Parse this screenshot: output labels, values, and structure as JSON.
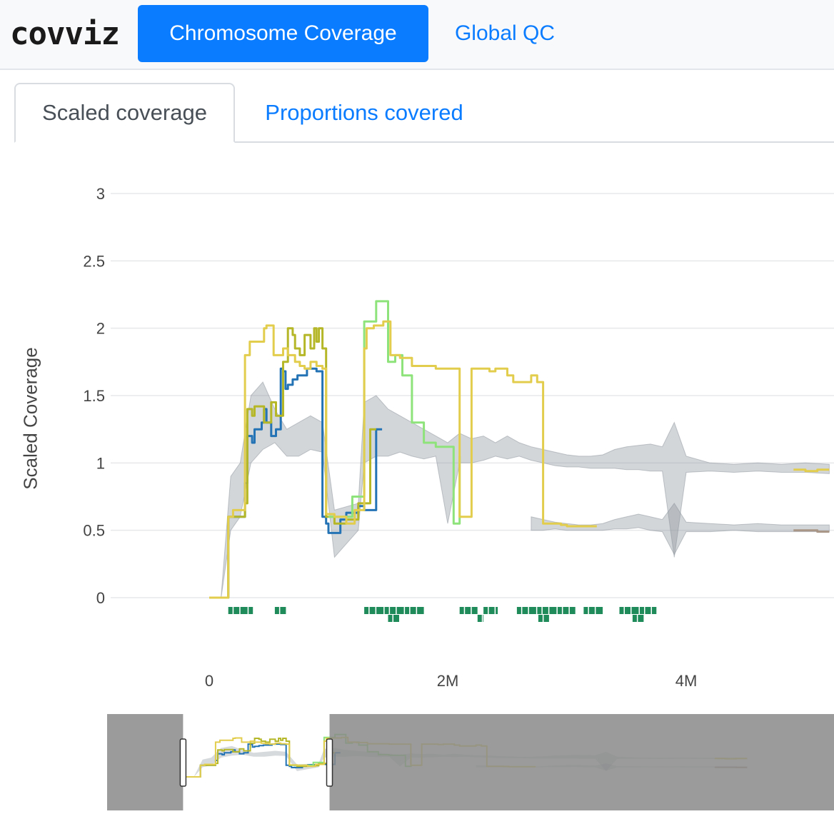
{
  "navbar": {
    "brand": "covviz",
    "items": [
      {
        "label": "Chromosome Coverage",
        "active": true
      },
      {
        "label": "Global QC",
        "active": false
      }
    ],
    "accent_color": "#0a7cff"
  },
  "tabs": [
    {
      "label": "Scaled coverage",
      "active": true
    },
    {
      "label": "Proportions covered",
      "active": false
    }
  ],
  "chart_data": {
    "type": "line",
    "title": "",
    "xlabel": "",
    "ylabel": "Scaled Coverage",
    "xlim": [
      0,
      5200000
    ],
    "ylim": [
      0,
      3
    ],
    "x_ticks": [
      {
        "value": 0,
        "label": "0"
      },
      {
        "value": 2000000,
        "label": "2M"
      },
      {
        "value": 4000000,
        "label": "4M"
      }
    ],
    "y_ticks": [
      {
        "value": 0,
        "label": "0"
      },
      {
        "value": 0.5,
        "label": "0.5"
      },
      {
        "value": 1,
        "label": "1"
      },
      {
        "value": 1.5,
        "label": "1.5"
      },
      {
        "value": 2,
        "label": "2"
      },
      {
        "value": 2.5,
        "label": "2.5"
      },
      {
        "value": 3,
        "label": "3"
      }
    ],
    "grid": true,
    "bands": [
      {
        "name": "",
        "color": "#8c949c",
        "x": [
          100000,
          180000,
          260000,
          350000,
          450000,
          550000,
          650000,
          750000,
          850000,
          950000,
          1050000,
          1250000,
          1300000,
          1400000,
          1500000,
          1600000,
          1700000,
          1800000,
          1900000,
          2000000,
          2100000,
          2200000,
          2300000,
          2400000,
          2500000,
          2600000,
          2700000,
          2800000,
          2900000,
          3000000,
          3100000,
          3200000,
          3300000,
          3400000,
          3500000,
          3600000,
          3700000,
          3800000,
          3900000,
          4000000,
          4200000,
          4400000,
          4600000,
          4800000,
          5000000,
          5200000
        ],
        "upper": [
          0.01,
          0.9,
          1.0,
          1.5,
          1.6,
          1.4,
          1.25,
          1.3,
          1.35,
          1.3,
          0.65,
          0.7,
          1.45,
          1.5,
          1.4,
          1.35,
          1.3,
          1.25,
          1.2,
          1.15,
          1.22,
          1.18,
          1.2,
          1.15,
          1.2,
          1.15,
          1.12,
          1.1,
          1.08,
          1.06,
          1.05,
          1.05,
          1.06,
          1.1,
          1.12,
          1.13,
          1.14,
          1.12,
          1.3,
          1.05,
          1.0,
          0.99,
          1.0,
          0.99,
          1.0,
          0.99
        ],
        "lower": [
          0.0,
          0.5,
          0.6,
          1.0,
          1.1,
          1.15,
          1.05,
          1.05,
          1.1,
          1.08,
          0.3,
          0.5,
          1.0,
          1.05,
          1.05,
          1.08,
          1.05,
          1.03,
          1.05,
          0.55,
          1.0,
          1.0,
          1.02,
          1.05,
          1.03,
          1.05,
          1.02,
          1.0,
          0.98,
          0.97,
          0.97,
          0.96,
          0.96,
          0.96,
          0.95,
          0.95,
          0.94,
          0.94,
          0.3,
          0.93,
          0.94,
          0.93,
          0.94,
          0.93,
          0.93,
          0.92
        ]
      },
      {
        "name": "",
        "color": "#8c949c",
        "x": [
          2700000,
          2800000,
          2900000,
          3000000,
          3100000,
          3200000,
          3300000,
          3400000,
          3500000,
          3600000,
          3700000,
          3800000,
          3900000,
          4000000,
          4200000,
          4400000,
          4600000,
          4800000,
          5000000,
          5200000
        ],
        "upper": [
          0.6,
          0.58,
          0.56,
          0.55,
          0.54,
          0.54,
          0.55,
          0.58,
          0.6,
          0.62,
          0.6,
          0.58,
          0.7,
          0.56,
          0.55,
          0.54,
          0.55,
          0.54,
          0.54,
          0.54
        ],
        "lower": [
          0.5,
          0.5,
          0.51,
          0.5,
          0.5,
          0.5,
          0.5,
          0.51,
          0.51,
          0.52,
          0.5,
          0.49,
          0.32,
          0.49,
          0.49,
          0.5,
          0.49,
          0.49,
          0.49,
          0.49
        ]
      }
    ],
    "series": [
      {
        "name": "",
        "color": "#2373b5",
        "x": [
          0,
          140000,
          160000,
          300000,
          320000,
          360000,
          380000,
          440000,
          460000,
          480000,
          520000,
          560000,
          600000,
          620000,
          640000,
          660000,
          700000,
          740000,
          820000,
          900000,
          950000,
          980000,
          1000000,
          1050000,
          1100000,
          1150000,
          1250000,
          1300000,
          1400000,
          1450000
        ],
        "y": [
          0,
          0,
          0.6,
          0.85,
          1.2,
          1.15,
          1.25,
          1.3,
          1.4,
          1.3,
          1.2,
          1.25,
          1.7,
          1.68,
          1.55,
          1.58,
          1.62,
          1.65,
          1.7,
          1.68,
          0.6,
          0.55,
          0.48,
          0.48,
          0.58,
          0.63,
          0.68,
          0.65,
          1.25,
          1.25
        ]
      },
      {
        "name": "",
        "color": "#b5b728",
        "x": [
          0,
          140000,
          160000,
          300000,
          320000,
          360000,
          380000,
          440000,
          460000,
          520000,
          560000,
          620000,
          660000,
          700000,
          720000,
          760000,
          800000,
          850000,
          880000,
          900000,
          920000,
          950000,
          980000,
          1050000,
          1150000,
          1250000,
          1350000,
          1400000
        ],
        "y": [
          0,
          0,
          0.6,
          0.7,
          1.4,
          1.35,
          1.42,
          1.42,
          1.3,
          1.45,
          1.35,
          1.75,
          2.0,
          1.95,
          1.85,
          1.8,
          1.95,
          1.85,
          2.0,
          1.9,
          2.0,
          1.85,
          0.6,
          0.55,
          0.58,
          0.7,
          1.25,
          1.25
        ]
      },
      {
        "name": "",
        "color": "#8ee37a",
        "x": [
          1000000,
          1050000,
          1200000,
          1250000,
          1300000,
          1320000,
          1400000,
          1450000,
          1500000,
          1560000,
          1620000,
          1700000,
          1800000,
          1900000,
          2000000,
          2050000,
          2100000
        ],
        "y": [
          0.6,
          0.6,
          0.75,
          0.75,
          2.05,
          2.05,
          2.2,
          2.2,
          1.75,
          1.8,
          1.65,
          1.3,
          1.15,
          1.12,
          1.12,
          0.55,
          1.05
        ]
      },
      {
        "name": "",
        "color": "#e3cd4c",
        "x": [
          0,
          140000,
          160000,
          200000,
          240000,
          300000,
          340000,
          400000,
          460000,
          480000,
          540000,
          580000,
          620000,
          660000,
          720000,
          760000,
          800000,
          850000,
          900000,
          950000,
          980000,
          1050000,
          1150000,
          1220000,
          1300000,
          1320000,
          1380000,
          1460000,
          1520000,
          1600000,
          1700000,
          1800000,
          1900000,
          2050000,
          2100000,
          2200000,
          2250000,
          2350000,
          2400000,
          2500000,
          2550000,
          2600000,
          2700000,
          2750000,
          2800000,
          2850000,
          2950000,
          3000000,
          3100000,
          3200000,
          3250000
        ],
        "y": [
          0,
          0,
          0.6,
          0.65,
          0.65,
          1.8,
          1.9,
          1.9,
          2.0,
          2.02,
          1.8,
          1.8,
          1.85,
          1.8,
          1.75,
          1.72,
          1.7,
          1.75,
          1.72,
          1.7,
          0.62,
          0.6,
          0.55,
          0.65,
          1.85,
          2.0,
          2.02,
          2.05,
          1.8,
          1.78,
          1.72,
          1.72,
          1.7,
          1.7,
          0.6,
          1.7,
          1.7,
          1.68,
          1.7,
          1.65,
          1.6,
          1.6,
          1.65,
          1.6,
          0.55,
          0.55,
          0.54,
          0.53,
          0.53,
          0.53,
          0.53
        ]
      },
      {
        "name": "",
        "color": "#e3cd4c",
        "x": [
          4900000,
          5000000,
          5100000,
          5200000
        ],
        "y": [
          0.95,
          0.94,
          0.95,
          0.95
        ]
      },
      {
        "name": "",
        "color": "#a99686",
        "x": [
          4900000,
          5000000,
          5100000,
          5200000
        ],
        "y": [
          0.5,
          0.5,
          0.49,
          0.49
        ]
      }
    ],
    "feature_tracks": [
      {
        "color": "#1f8a5a",
        "row": 0,
        "segments": [
          [
            160000,
            370000
          ],
          [
            550000,
            650000
          ],
          [
            1300000,
            1800000
          ],
          [
            2100000,
            2250000
          ],
          [
            2300000,
            2420000
          ],
          [
            2580000,
            3070000
          ],
          [
            3140000,
            3300000
          ],
          [
            3440000,
            3750000
          ]
        ]
      },
      {
        "color": "#1f8a5a",
        "row": 1,
        "segments": [
          [
            1500000,
            1600000
          ],
          [
            2250000,
            2300000
          ],
          [
            2760000,
            2850000
          ],
          [
            3550000,
            3650000
          ]
        ]
      }
    ],
    "range_slider": {
      "visible_range": [
        0,
        1350000
      ],
      "full_range": [
        -700000,
        6000000
      ]
    }
  }
}
